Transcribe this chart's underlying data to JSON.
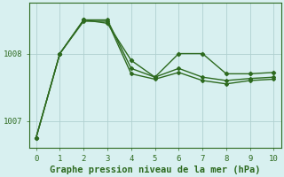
{
  "series": [
    {
      "x": [
        0,
        1,
        2,
        3,
        4,
        5,
        6,
        7,
        8,
        9,
        10
      ],
      "y": [
        1006.75,
        1008.0,
        1008.5,
        1008.45,
        1007.9,
        1007.65,
        1008.0,
        1008.0,
        1007.7,
        1007.7,
        1007.72
      ],
      "color": "#2d6a1f",
      "linewidth": 1.0,
      "marker": "D",
      "markersize": 2.2
    },
    {
      "x": [
        0,
        1,
        2,
        3,
        4,
        5,
        6,
        7,
        8,
        9,
        10
      ],
      "y": [
        1006.75,
        1008.0,
        1008.5,
        1008.5,
        1007.78,
        1007.65,
        1007.78,
        1007.65,
        1007.6,
        1007.63,
        1007.65
      ],
      "color": "#2d6a1f",
      "linewidth": 1.0,
      "marker": "D",
      "markersize": 2.0
    },
    {
      "x": [
        0,
        1,
        2,
        3,
        4,
        5,
        6,
        7,
        8,
        9,
        10
      ],
      "y": [
        1006.75,
        1008.0,
        1008.48,
        1008.48,
        1007.7,
        1007.62,
        1007.72,
        1007.6,
        1007.55,
        1007.6,
        1007.62
      ],
      "color": "#2d6a1f",
      "linewidth": 1.0,
      "marker": "D",
      "markersize": 2.0
    }
  ],
  "xlim": [
    -0.3,
    10.3
  ],
  "ylim": [
    1006.6,
    1008.75
  ],
  "yticks": [
    1007,
    1008
  ],
  "xticks": [
    0,
    1,
    2,
    3,
    4,
    5,
    6,
    7,
    8,
    9,
    10
  ],
  "xlabel": "Graphe pression niveau de la mer (hPa)",
  "xlabel_fontsize": 7.5,
  "xlabel_color": "#2d6a1f",
  "xlabel_bold": true,
  "tick_color": "#2d6a1f",
  "tick_fontsize": 6.5,
  "bg_color": "#d8f0f0",
  "grid_color": "#b0d0d0",
  "spine_color": "#2d6a1f"
}
